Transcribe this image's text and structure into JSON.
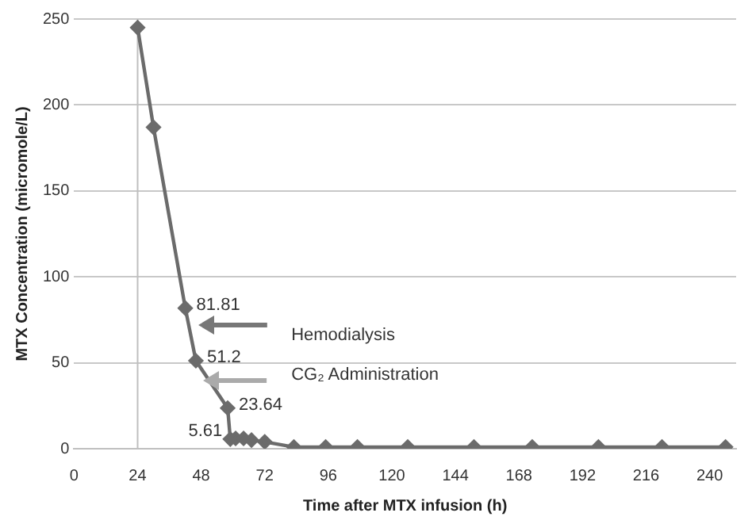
{
  "chart_data": {
    "type": "line",
    "xlabel": "Time after MTX infusion (h)",
    "ylabel": "MTX Concentration (micromole/L)",
    "series": [
      {
        "color": "#6b6b6b",
        "x": [
          24,
          30,
          42,
          46,
          58,
          59,
          61,
          64,
          67,
          72,
          83,
          95,
          107,
          126,
          151,
          173,
          198,
          222,
          246
        ],
        "values": [
          245,
          187,
          81.81,
          51.2,
          23.64,
          5.61,
          6,
          6,
          5,
          4,
          1,
          1,
          1,
          1,
          1,
          1,
          1,
          1,
          1
        ],
        "value_labels": [
          null,
          null,
          "81.81",
          "51.2",
          "23.64",
          "5.61",
          null,
          null,
          null,
          null,
          null,
          null,
          null,
          null,
          null,
          null,
          null,
          null,
          null
        ]
      }
    ],
    "xlim": [
      0,
      250
    ],
    "xticks": [
      0,
      24,
      48,
      72,
      96,
      120,
      144,
      168,
      192,
      216,
      240
    ],
    "ylim": [
      0,
      250
    ],
    "yticks": [
      0,
      50,
      100,
      150,
      200,
      250
    ],
    "grid": "y",
    "legend": false,
    "marker": "diamond",
    "line_style": "solid",
    "ref_lines": [
      {
        "axis": "x",
        "value": 24,
        "color": "#bfbfbf"
      }
    ],
    "annotations": [
      "Hemodialysis",
      "CG₂ Administration"
    ]
  }
}
